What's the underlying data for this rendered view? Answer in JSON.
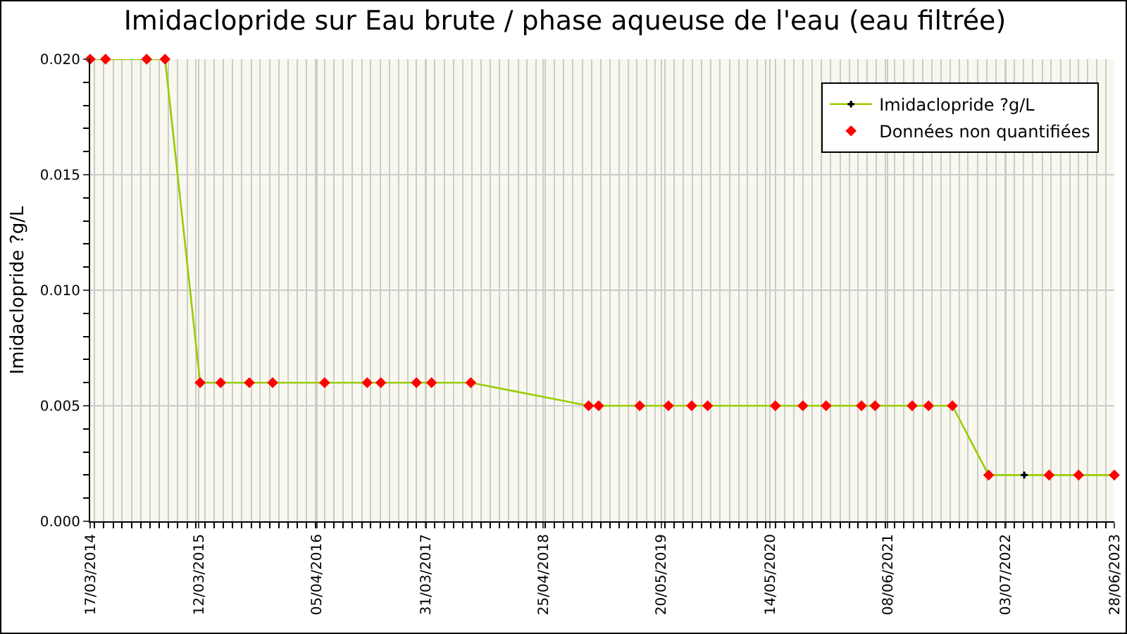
{
  "chart_data": {
    "type": "line",
    "title": "Imidaclopride sur Eau brute / phase aqueuse de l'eau (eau filtrée)",
    "ylabel": "Imidaclopride ?g/L",
    "x": [
      "2014-03-17",
      "2014-05-07",
      "2014-09-20",
      "2014-11-20",
      "2015-03-16",
      "2015-05-23",
      "2015-08-26",
      "2015-11-11",
      "2016-05-01",
      "2016-09-19",
      "2016-11-03",
      "2017-03-01",
      "2017-04-20",
      "2017-08-28",
      "2018-09-22",
      "2018-10-25",
      "2019-03-10",
      "2019-06-13",
      "2019-08-29",
      "2019-10-21",
      "2020-06-01",
      "2020-08-31",
      "2020-11-16",
      "2021-03-13",
      "2021-04-27",
      "2021-08-28",
      "2021-10-21",
      "2022-01-08",
      "2022-05-08",
      "2022-09-03",
      "2022-11-24",
      "2023-03-02",
      "2023-06-28"
    ],
    "series": [
      {
        "name": "Imidaclopride ?g/L",
        "color": "#99cc00",
        "marker": "cross",
        "values": [
          0.02,
          0.02,
          0.02,
          0.02,
          0.006,
          0.006,
          0.006,
          0.006,
          0.006,
          0.006,
          0.006,
          0.006,
          0.006,
          0.006,
          0.005,
          0.005,
          0.005,
          0.005,
          0.005,
          0.005,
          0.005,
          0.005,
          0.005,
          0.005,
          0.005,
          0.005,
          0.005,
          0.005,
          0.002,
          0.002,
          0.002,
          0.002,
          0.002
        ]
      },
      {
        "name": "Données non quantifiées",
        "type": "scatter",
        "color": "#ff0000",
        "marker": "diamond",
        "values": [
          0.02,
          0.02,
          0.02,
          0.02,
          0.006,
          0.006,
          0.006,
          0.006,
          0.006,
          0.006,
          0.006,
          0.006,
          0.006,
          0.006,
          0.005,
          0.005,
          0.005,
          0.005,
          0.005,
          0.005,
          0.005,
          0.005,
          0.005,
          0.005,
          0.005,
          0.005,
          0.005,
          0.005,
          0.002,
          null,
          0.002,
          0.002,
          0.002
        ]
      }
    ],
    "xlim": [
      "2014-03-17",
      "2023-06-28"
    ],
    "xticks": [
      {
        "value": "2014-03-17",
        "label": "17/03/2014"
      },
      {
        "value": "2015-03-12",
        "label": "12/03/2015"
      },
      {
        "value": "2016-04-05",
        "label": "05/04/2016"
      },
      {
        "value": "2017-03-31",
        "label": "31/03/2017"
      },
      {
        "value": "2018-04-25",
        "label": "25/04/2018"
      },
      {
        "value": "2019-05-20",
        "label": "20/05/2019"
      },
      {
        "value": "2020-05-14",
        "label": "14/05/2020"
      },
      {
        "value": "2021-06-08",
        "label": "08/06/2021"
      },
      {
        "value": "2022-07-03",
        "label": "03/07/2022"
      },
      {
        "value": "2023-06-28",
        "label": "28/06/2023"
      }
    ],
    "ylim": [
      0,
      0.02
    ],
    "yticks": [
      {
        "value": 0,
        "label": "0.000"
      },
      {
        "value": 0.005,
        "label": "0.005"
      },
      {
        "value": 0.01,
        "label": "0.010"
      },
      {
        "value": 0.015,
        "label": "0.015"
      },
      {
        "value": 0.02,
        "label": "0.020"
      }
    ],
    "grid": true,
    "legend": "top right"
  }
}
